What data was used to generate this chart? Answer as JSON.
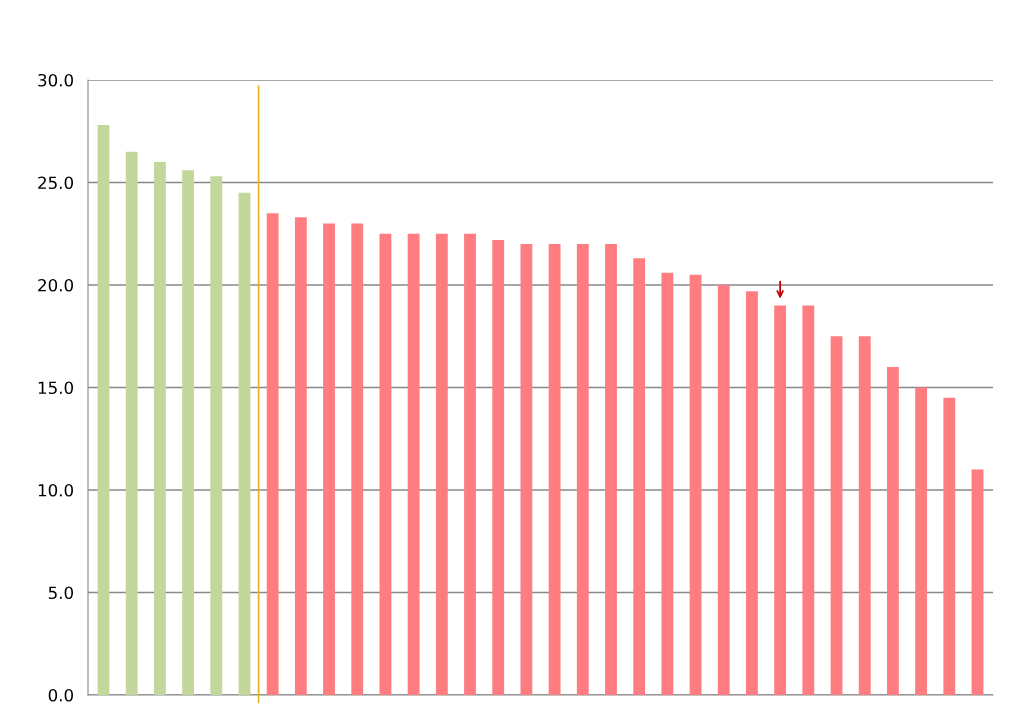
{
  "chart_data": {
    "type": "bar",
    "categories": [
      null,
      null,
      null,
      null,
      null,
      null,
      null,
      null,
      null,
      null,
      null,
      null,
      null,
      null,
      null,
      null,
      null,
      null,
      null,
      null,
      null,
      null,
      null,
      null,
      null,
      null,
      null,
      null,
      null,
      null,
      null,
      null
    ],
    "values": [
      27.8,
      26.5,
      26.0,
      25.6,
      25.3,
      24.5,
      23.5,
      23.3,
      23.0,
      23.0,
      22.5,
      22.5,
      22.5,
      22.5,
      22.2,
      22.0,
      22.0,
      22.0,
      22.0,
      21.3,
      20.6,
      20.5,
      20.0,
      19.7,
      19.0,
      19.0,
      17.5,
      17.5,
      16.0,
      15.0,
      14.5,
      11.0
    ],
    "colors": [
      "#c3d69b",
      "#c3d69b",
      "#c3d69b",
      "#c3d69b",
      "#c3d69b",
      "#c3d69b",
      "#ff7c80",
      "#ff7c80",
      "#ff7c80",
      "#ff7c80",
      "#ff7c80",
      "#ff7c80",
      "#ff7c80",
      "#ff7c80",
      "#ff7c80",
      "#ff7c80",
      "#ff7c80",
      "#ff7c80",
      "#ff7c80",
      "#ff7c80",
      "#ff7c80",
      "#ff7c80",
      "#ff7c80",
      "#ff7c80",
      "#ff7c80",
      "#ff7c80",
      "#ff7c80",
      "#ff7c80",
      "#ff7c80",
      "#ff7c80",
      "#ff7c80",
      "#ff7c80"
    ],
    "ylim": [
      0,
      30
    ],
    "yticks": [
      {
        "value": 0,
        "label": "0.0"
      },
      {
        "value": 5,
        "label": "5.0"
      },
      {
        "value": 10,
        "label": "10.0"
      },
      {
        "value": 15,
        "label": "15.0"
      },
      {
        "value": 20,
        "label": "20.0"
      },
      {
        "value": 25,
        "label": "25.0"
      },
      {
        "value": 30,
        "label": "30.0"
      }
    ],
    "grid": "y"
  }
}
